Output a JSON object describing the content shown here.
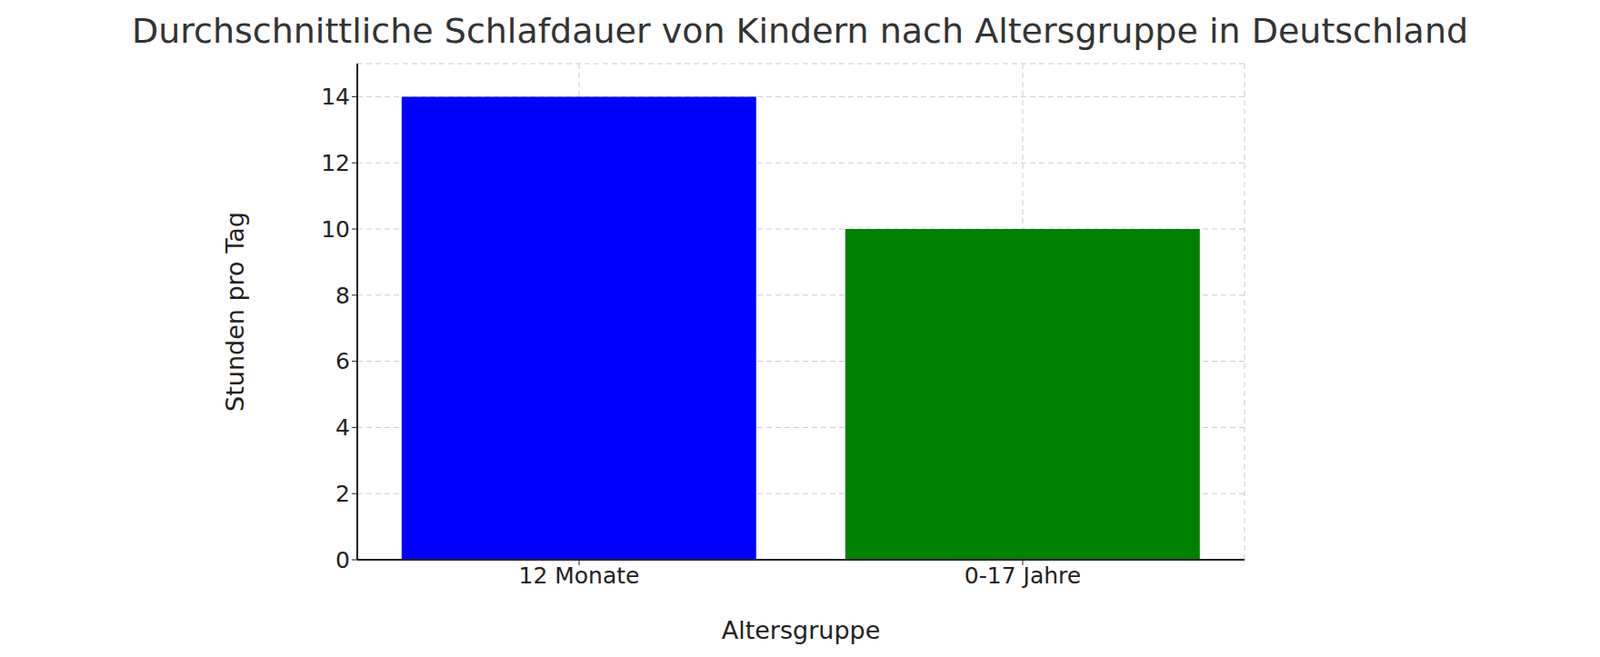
{
  "chart_data": {
    "type": "bar",
    "title": "Durchschnittliche Schlafdauer von Kindern nach Altersgruppe in Deutschland",
    "x_label": "Altersgruppe",
    "y_label": "Stunden pro Tag",
    "categories": [
      "12 Monate",
      "0-17 Jahre"
    ],
    "values": [
      14,
      10
    ],
    "colors": [
      "#0000ff",
      "#008000"
    ],
    "ylim": [
      0,
      15
    ],
    "yticks": [
      0,
      2,
      4,
      6,
      8,
      10,
      12,
      14
    ],
    "grid": true
  }
}
